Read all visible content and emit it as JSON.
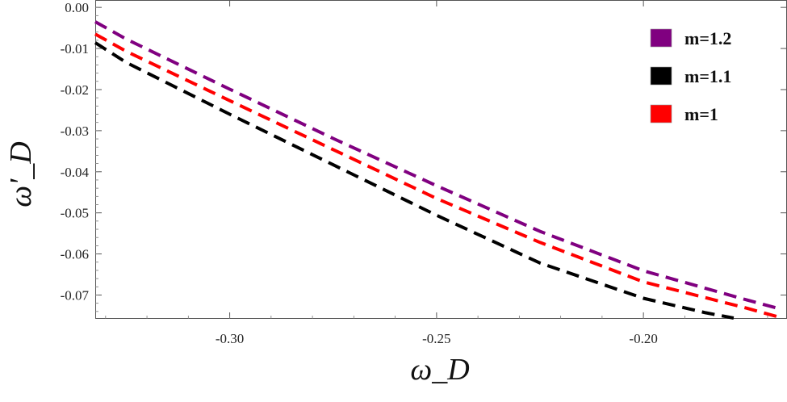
{
  "chart_data": {
    "type": "line",
    "title": "",
    "xlabel": "ω_D",
    "ylabel": "ω'_D",
    "xlim": [
      -0.3325,
      -0.1653
    ],
    "ylim": [
      -0.0758,
      0.0018
    ],
    "x_ticks": [
      -0.3,
      -0.25,
      -0.2
    ],
    "x_tick_labels": [
      "-0.30",
      "-0.25",
      "-0.20"
    ],
    "y_ticks": [
      0.0,
      -0.01,
      -0.02,
      -0.03,
      -0.04,
      -0.05,
      -0.06,
      -0.07
    ],
    "y_tick_labels": [
      "0.00",
      "-0.01",
      "-0.02",
      "-0.03",
      "-0.04",
      "-0.05",
      "-0.06",
      "-0.07"
    ],
    "grid": false,
    "legend_position": "top-right",
    "line_style": "dashed",
    "series": [
      {
        "name": "m=1.2",
        "color": "#800080",
        "x": [
          -0.3325,
          -0.325,
          -0.3,
          -0.275,
          -0.25,
          -0.225,
          -0.2,
          -0.175,
          -0.1665
        ],
        "y": [
          -0.0035,
          -0.0077,
          -0.0199,
          -0.0319,
          -0.0434,
          -0.0545,
          -0.0641,
          -0.0712,
          -0.0735
        ]
      },
      {
        "name": "m=1.1",
        "color": "#000000",
        "x": [
          -0.3325,
          -0.325,
          -0.3,
          -0.275,
          -0.25,
          -0.225,
          -0.2,
          -0.185,
          -0.1782
        ],
        "y": [
          -0.0086,
          -0.0134,
          -0.026,
          -0.0383,
          -0.0506,
          -0.0622,
          -0.0708,
          -0.0743,
          -0.0756
        ]
      },
      {
        "name": "m=1",
        "color": "#ff0000",
        "x": [
          -0.3325,
          -0.325,
          -0.3,
          -0.275,
          -0.25,
          -0.225,
          -0.2,
          -0.175,
          -0.1675
        ],
        "y": [
          -0.0065,
          -0.0107,
          -0.0227,
          -0.0346,
          -0.0465,
          -0.0572,
          -0.0668,
          -0.0732,
          -0.0753
        ]
      }
    ]
  }
}
